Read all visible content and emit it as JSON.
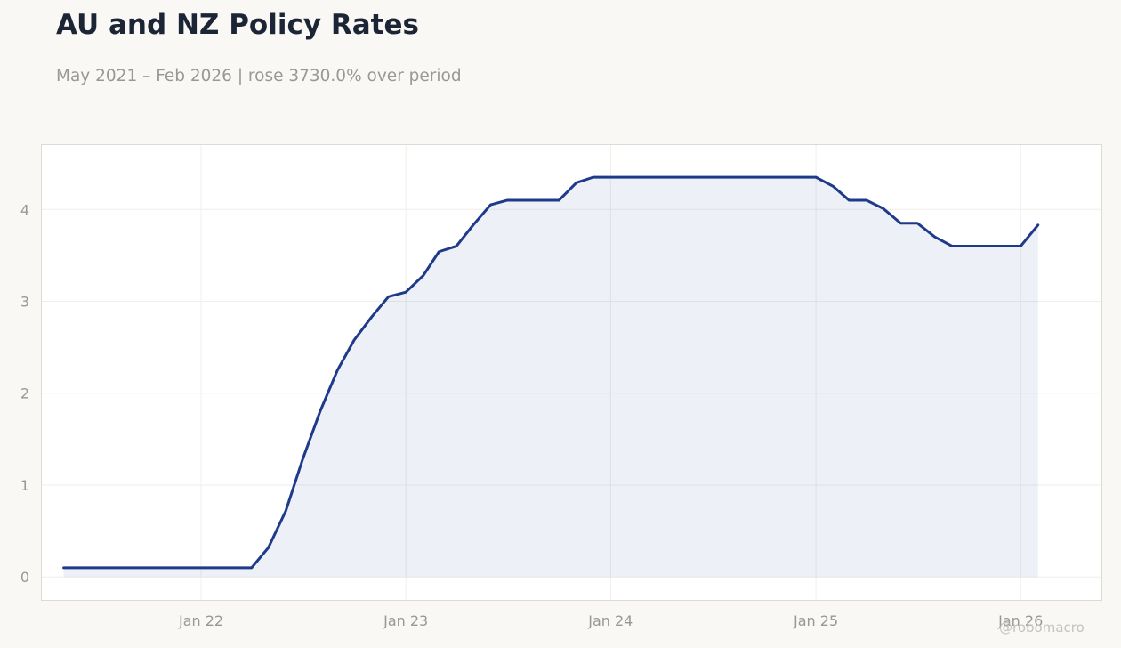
{
  "chart_data": {
    "type": "area",
    "title": "AU and NZ Policy Rates",
    "subtitle": "May 2021 – Feb 2026 | rose 3730.0% over period",
    "xlabel": "",
    "ylabel": "",
    "ylim": [
      -0.25,
      4.7
    ],
    "xlim": [
      "2021-03-23",
      "2026-05-25"
    ],
    "grid": true,
    "legend": "none",
    "y_ticks": [
      0,
      1,
      2,
      3,
      4
    ],
    "x_ticks": [
      {
        "date": "2022-01-01",
        "label": "Jan 22"
      },
      {
        "date": "2023-01-01",
        "label": "Jan 23"
      },
      {
        "date": "2024-01-01",
        "label": "Jan 24"
      },
      {
        "date": "2025-01-01",
        "label": "Jan 25"
      },
      {
        "date": "2026-01-01",
        "label": "Jan 26"
      }
    ],
    "series": [
      {
        "color": "#1f3a8a",
        "fill_color": "#1f3a8a",
        "points": [
          [
            "2021-05-01",
            0.1
          ],
          [
            "2021-06-01",
            0.1
          ],
          [
            "2021-07-01",
            0.1
          ],
          [
            "2021-08-01",
            0.1
          ],
          [
            "2021-09-01",
            0.1
          ],
          [
            "2021-10-01",
            0.1
          ],
          [
            "2021-11-01",
            0.1
          ],
          [
            "2021-12-01",
            0.1
          ],
          [
            "2022-01-01",
            0.1
          ],
          [
            "2022-02-01",
            0.1
          ],
          [
            "2022-03-01",
            0.1
          ],
          [
            "2022-04-01",
            0.1
          ],
          [
            "2022-05-01",
            0.32
          ],
          [
            "2022-06-01",
            0.72
          ],
          [
            "2022-07-01",
            1.28
          ],
          [
            "2022-08-01",
            1.8
          ],
          [
            "2022-09-01",
            2.25
          ],
          [
            "2022-10-01",
            2.58
          ],
          [
            "2022-11-01",
            2.83
          ],
          [
            "2022-12-01",
            3.05
          ],
          [
            "2023-01-01",
            3.1
          ],
          [
            "2023-02-01",
            3.28
          ],
          [
            "2023-03-01",
            3.54
          ],
          [
            "2023-04-01",
            3.6
          ],
          [
            "2023-05-01",
            3.83
          ],
          [
            "2023-06-01",
            4.05
          ],
          [
            "2023-07-01",
            4.1
          ],
          [
            "2023-08-01",
            4.1
          ],
          [
            "2023-09-01",
            4.1
          ],
          [
            "2023-10-01",
            4.1
          ],
          [
            "2023-11-01",
            4.29
          ],
          [
            "2023-12-01",
            4.35
          ],
          [
            "2024-01-01",
            4.35
          ],
          [
            "2024-02-01",
            4.35
          ],
          [
            "2024-03-01",
            4.35
          ],
          [
            "2024-04-01",
            4.35
          ],
          [
            "2024-05-01",
            4.35
          ],
          [
            "2024-06-01",
            4.35
          ],
          [
            "2024-07-01",
            4.35
          ],
          [
            "2024-08-01",
            4.35
          ],
          [
            "2024-09-01",
            4.35
          ],
          [
            "2024-10-01",
            4.35
          ],
          [
            "2024-11-01",
            4.35
          ],
          [
            "2024-12-01",
            4.35
          ],
          [
            "2025-01-01",
            4.35
          ],
          [
            "2025-02-01",
            4.25
          ],
          [
            "2025-03-01",
            4.1
          ],
          [
            "2025-04-01",
            4.1
          ],
          [
            "2025-05-01",
            4.01
          ],
          [
            "2025-06-01",
            3.85
          ],
          [
            "2025-07-01",
            3.85
          ],
          [
            "2025-08-01",
            3.7
          ],
          [
            "2025-09-01",
            3.6
          ],
          [
            "2025-10-01",
            3.6
          ],
          [
            "2025-11-01",
            3.6
          ],
          [
            "2025-12-01",
            3.6
          ],
          [
            "2026-01-01",
            3.6
          ],
          [
            "2026-02-01",
            3.83
          ]
        ]
      }
    ]
  },
  "watermark": "@robomacro"
}
